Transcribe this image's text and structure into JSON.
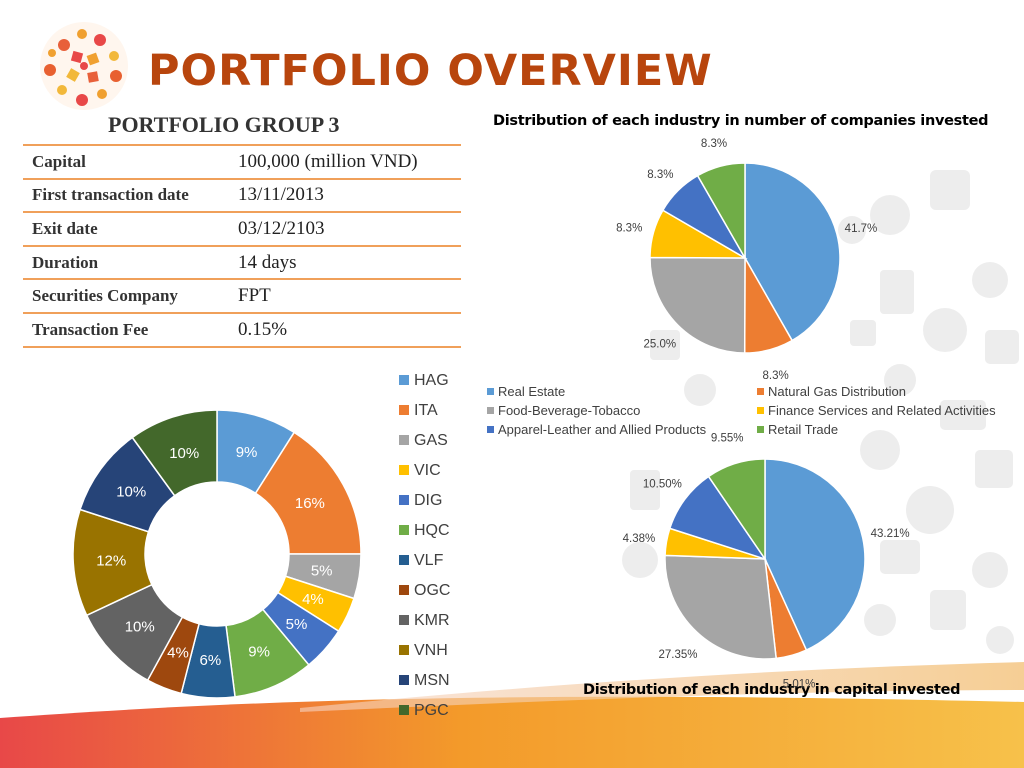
{
  "title": "PORTFOLIO OVERVIEW",
  "group_title": "PORTFOLIO GROUP 3",
  "info": [
    {
      "label": "Capital",
      "value": "100,000 (million VND)"
    },
    {
      "label": "First transaction date",
      "value": "13/11/2013"
    },
    {
      "label": "Exit date",
      "value": "03/12/2103"
    },
    {
      "label": "Duration",
      "value": "14 days"
    },
    {
      "label": "Securities Company",
      "value": "FPT"
    },
    {
      "label": "Transaction Fee",
      "value": "0.15%"
    }
  ],
  "colors": {
    "title": "#b8450d",
    "table_rule": "#f0a05a",
    "accent_gradient": [
      "#e84848",
      "#f39a2a",
      "#f7c14a"
    ]
  },
  "chart_data": [
    {
      "type": "pie",
      "variant": "doughnut",
      "title": "",
      "legend_position": "right",
      "categories": [
        "HAG",
        "ITA",
        "GAS",
        "VIC",
        "DIG",
        "HQC",
        "VLF",
        "OGC",
        "KMR",
        "VNH",
        "MSN",
        "PGC"
      ],
      "values": [
        9,
        16,
        5,
        4,
        5,
        9,
        6,
        4,
        10,
        12,
        10,
        10
      ],
      "labels": [
        "9%",
        "16%",
        "5%",
        "4%",
        "5%",
        "9%",
        "6%",
        "4%",
        "10%",
        "12%",
        "10%",
        "10%"
      ],
      "colors": [
        "#5b9bd5",
        "#ed7d31",
        "#a5a5a5",
        "#ffc000",
        "#4472c4",
        "#70ad47",
        "#255e91",
        "#9e480e",
        "#636363",
        "#997300",
        "#264478",
        "#43682b"
      ]
    },
    {
      "type": "pie",
      "title": "Distribution of each industry in number of companies invested",
      "legend_position": "bottom",
      "categories": [
        "Real Estate",
        "Natural Gas Distribution",
        "Food-Beverage-Tobacco",
        "Finance Services and Related Activities",
        "Apparel-Leather and Allied Products",
        "Retail Trade"
      ],
      "values": [
        41.7,
        8.3,
        25.0,
        8.3,
        8.3,
        8.3
      ],
      "labels": [
        "41.7%",
        "8.3%",
        "25.0%",
        "8.3%",
        "8.3%",
        "8.3%"
      ],
      "colors": [
        "#5b9bd5",
        "#ed7d31",
        "#a5a5a5",
        "#ffc000",
        "#4472c4",
        "#70ad47"
      ]
    },
    {
      "type": "pie",
      "title": "Distribution of each industry in capital invested",
      "legend_position": "shared",
      "categories": [
        "Real Estate",
        "Natural Gas Distribution",
        "Food-Beverage-Tobacco",
        "Finance Services and Related Activities",
        "Apparel-Leather and Allied Products",
        "Retail Trade"
      ],
      "values": [
        43.21,
        5.01,
        27.35,
        4.38,
        10.5,
        9.55
      ],
      "labels": [
        "43.21%",
        "5.01%",
        "27.35%",
        "4.38%",
        "10.50%",
        "9.55%"
      ],
      "colors": [
        "#5b9bd5",
        "#ed7d31",
        "#a5a5a5",
        "#ffc000",
        "#4472c4",
        "#70ad47"
      ]
    }
  ]
}
